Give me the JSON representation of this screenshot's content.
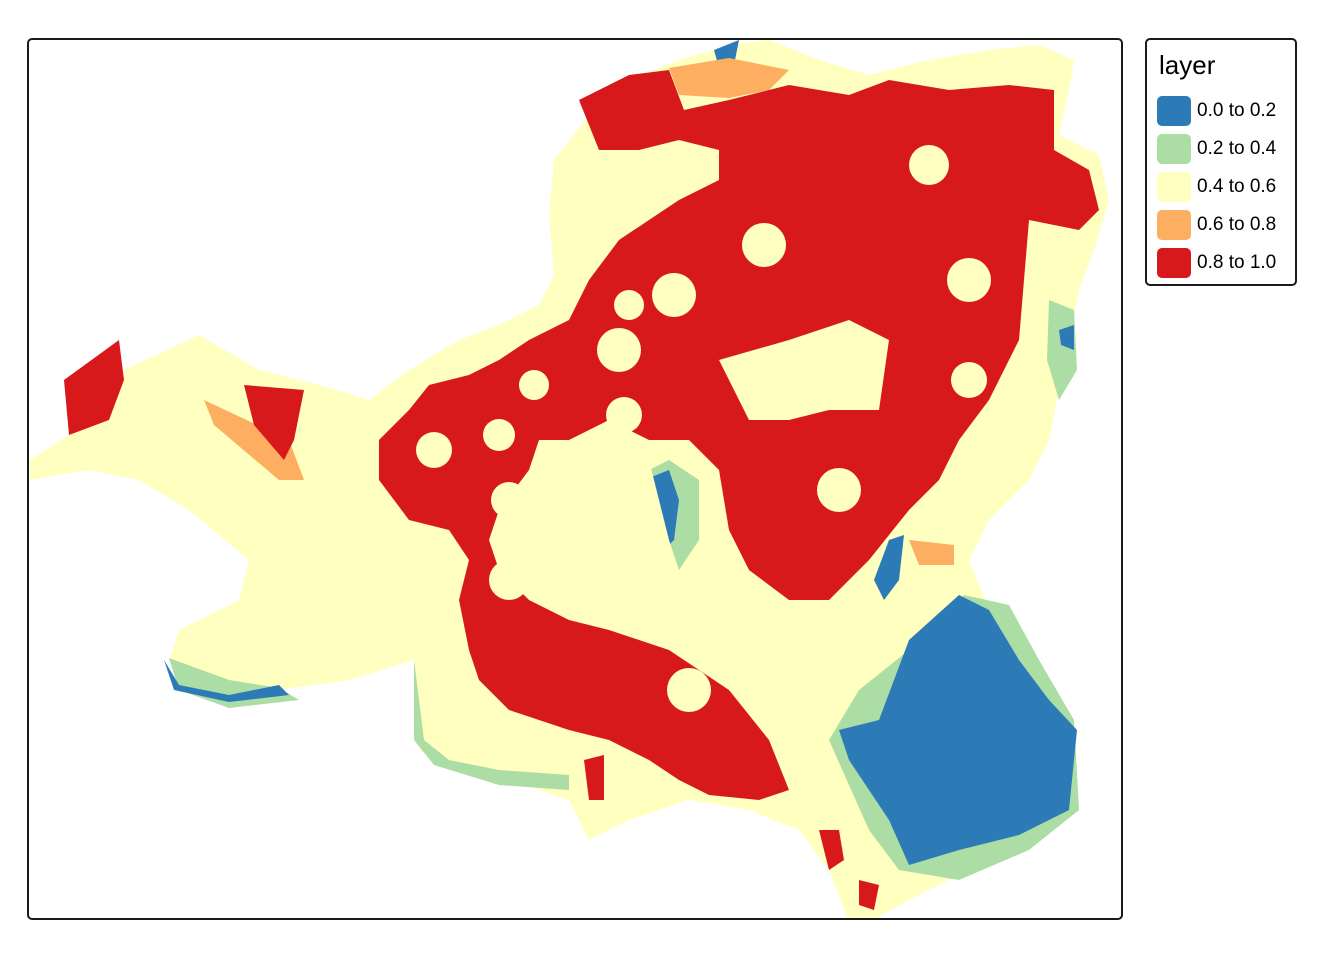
{
  "legend": {
    "title": "layer",
    "classes": [
      {
        "label": "0.0 to 0.2",
        "color": "#2c7bb6"
      },
      {
        "label": "0.2 to 0.4",
        "color": "#abdda4"
      },
      {
        "label": "0.4 to 0.6",
        "color": "#ffffbf"
      },
      {
        "label": "0.6 to 0.8",
        "color": "#fdae61"
      },
      {
        "label": "0.8 to 1.0",
        "color": "#d7191c"
      }
    ]
  },
  "frame_border_color": "#1a1a1a"
}
